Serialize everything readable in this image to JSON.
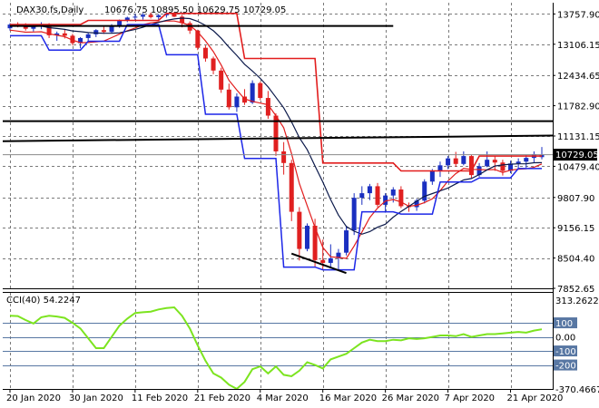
{
  "header": {
    "symbol": "DAX30.fs,Daily",
    "ohlc": "10676.75 10895.50 10629.75 10729.05"
  },
  "chart_data": {
    "type": "candlestick",
    "price_axis": {
      "ticks": [
        13757.9,
        13106.15,
        12434.65,
        11782.9,
        11131.15,
        10479.4,
        9807.9,
        9156.15,
        8504.4,
        7852.65
      ],
      "range": [
        7852.65,
        14000
      ],
      "current_price": 10729.05,
      "current_price_label": "10729.05"
    },
    "x_axis": {
      "labels": [
        "20 Jan 2020",
        "30 Jan 2020",
        "11 Feb 2020",
        "21 Feb 2020",
        "4 Mar 2020",
        "16 Mar 2020",
        "26 Mar 2020",
        "7 Apr 2020",
        "21 Apr 2020"
      ],
      "label_bars": [
        0,
        8,
        16,
        24,
        32,
        40,
        48,
        56,
        64
      ],
      "bar_count": 69
    },
    "candles": [
      [
        13450,
        13560,
        13400,
        13530
      ],
      [
        13530,
        13580,
        13470,
        13490
      ],
      [
        13490,
        13560,
        13400,
        13440
      ],
      [
        13440,
        13530,
        13380,
        13500
      ],
      [
        13500,
        13580,
        13430,
        13520
      ],
      [
        13520,
        13560,
        13240,
        13300
      ],
      [
        13300,
        13380,
        13180,
        13340
      ],
      [
        13340,
        13420,
        13230,
        13290
      ],
      [
        13290,
        13330,
        13080,
        13130
      ],
      [
        13130,
        13260,
        13020,
        13240
      ],
      [
        13240,
        13360,
        13150,
        13320
      ],
      [
        13320,
        13430,
        13260,
        13410
      ],
      [
        13410,
        13490,
        13330,
        13370
      ],
      [
        13370,
        13540,
        13340,
        13500
      ],
      [
        13500,
        13640,
        13460,
        13620
      ],
      [
        13620,
        13700,
        13580,
        13680
      ],
      [
        13680,
        13760,
        13610,
        13700
      ],
      [
        13700,
        13780,
        13640,
        13740
      ],
      [
        13740,
        13790,
        13660,
        13690
      ],
      [
        13690,
        13760,
        13620,
        13730
      ],
      [
        13730,
        13790,
        13680,
        13770
      ],
      [
        13770,
        13800,
        13690,
        13700
      ],
      [
        13700,
        13740,
        13470,
        13560
      ],
      [
        13560,
        13600,
        13330,
        13400
      ],
      [
        13400,
        13420,
        12980,
        13030
      ],
      [
        13030,
        13080,
        12730,
        12800
      ],
      [
        12800,
        12840,
        12460,
        12540
      ],
      [
        12540,
        12600,
        12060,
        12130
      ],
      [
        12130,
        12260,
        11700,
        11750
      ],
      [
        11750,
        12050,
        11650,
        11980
      ],
      [
        11980,
        12140,
        11800,
        11850
      ],
      [
        11850,
        12330,
        11820,
        12270
      ],
      [
        12270,
        12300,
        11900,
        11950
      ],
      [
        11950,
        12100,
        11500,
        11570
      ],
      [
        11570,
        11620,
        10700,
        10800
      ],
      [
        10800,
        11000,
        10300,
        10550
      ],
      [
        10550,
        10620,
        9300,
        9500
      ],
      [
        9500,
        9600,
        8450,
        8700
      ],
      [
        8700,
        9250,
        8650,
        9200
      ],
      [
        9200,
        9350,
        8300,
        8460
      ],
      [
        8460,
        8900,
        8250,
        8400
      ],
      [
        8400,
        8800,
        8280,
        8500
      ],
      [
        8500,
        8700,
        8260,
        8620
      ],
      [
        8620,
        9200,
        8560,
        9100
      ],
      [
        9100,
        9900,
        9000,
        9800
      ],
      [
        9800,
        10050,
        9650,
        9900
      ],
      [
        9900,
        10100,
        9750,
        10050
      ],
      [
        10050,
        10120,
        9600,
        9650
      ],
      [
        9650,
        9900,
        9480,
        9850
      ],
      [
        9850,
        10030,
        9700,
        9980
      ],
      [
        9980,
        10050,
        9580,
        9620
      ],
      [
        9620,
        9700,
        9500,
        9600
      ],
      [
        9600,
        9780,
        9520,
        9740
      ],
      [
        9740,
        10200,
        9680,
        10150
      ],
      [
        10150,
        10420,
        10080,
        10380
      ],
      [
        10380,
        10580,
        10250,
        10500
      ],
      [
        10500,
        10700,
        10420,
        10650
      ],
      [
        10650,
        10790,
        10470,
        10530
      ],
      [
        10530,
        10800,
        10500,
        10700
      ],
      [
        10700,
        10730,
        10230,
        10290
      ],
      [
        10290,
        10550,
        10250,
        10480
      ],
      [
        10480,
        10800,
        10460,
        10620
      ],
      [
        10620,
        10700,
        10380,
        10560
      ],
      [
        10560,
        10620,
        10280,
        10380
      ],
      [
        10380,
        10600,
        10330,
        10540
      ],
      [
        10540,
        10650,
        10420,
        10580
      ],
      [
        10580,
        10720,
        10450,
        10660
      ],
      [
        10660,
        10800,
        10560,
        10740
      ],
      [
        10676.75,
        10895.5,
        10629.75,
        10729.05
      ]
    ],
    "indicator": {
      "label": "CCI(40) 54.2247",
      "ticks_right": [
        "313.2622",
        "100",
        "0.00",
        "-100",
        "-200",
        "-370.4667"
      ],
      "range": [
        -370.4667,
        313.2622
      ],
      "levels": [
        100,
        0,
        -100,
        -200
      ],
      "values": [
        150,
        148,
        120,
        95,
        140,
        150,
        145,
        135,
        100,
        60,
        -10,
        -80,
        -80,
        0,
        80,
        130,
        170,
        175,
        180,
        195,
        205,
        210,
        150,
        60,
        -60,
        -170,
        -260,
        -290,
        -340,
        -370,
        -320,
        -230,
        -210,
        -260,
        -210,
        -270,
        -280,
        -240,
        -180,
        -200,
        -225,
        -160,
        -140,
        -120,
        -80,
        -40,
        -20,
        -30,
        -30,
        -20,
        -25,
        -10,
        -15,
        -10,
        0,
        10,
        10,
        5,
        20,
        0,
        10,
        20,
        20,
        25,
        30,
        35,
        30,
        45,
        54.2247
      ]
    },
    "colors": {
      "bull": "#1a2fc0",
      "bear": "#e02020",
      "ma_red": "#e21d1d",
      "ma_blue": "#1d27e8",
      "ma_navy": "#0c1a4b",
      "cci": "#7ce41f",
      "grid": "#7a7a7a",
      "level": "#5877a3",
      "price_bg": "#f1f1f1"
    }
  }
}
